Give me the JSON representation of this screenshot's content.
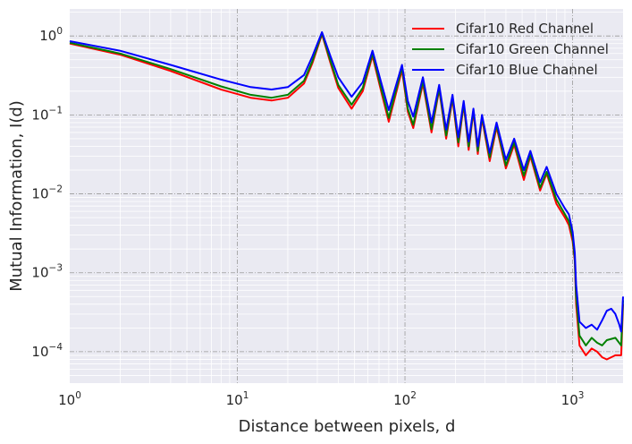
{
  "chart_data": {
    "type": "line",
    "xlabel": "Distance between pixels, d",
    "ylabel": "Mutual Information, I(d)",
    "xscale": "log",
    "yscale": "log",
    "xlim": [
      1,
      2000
    ],
    "ylim": [
      4e-05,
      2.2
    ],
    "grid": true,
    "legend_position": "top-right",
    "xticks": [
      {
        "value": 1,
        "base": "10",
        "exp": "0"
      },
      {
        "value": 10,
        "base": "10",
        "exp": "1"
      },
      {
        "value": 100,
        "base": "10",
        "exp": "2"
      },
      {
        "value": 1000,
        "base": "10",
        "exp": "3"
      }
    ],
    "yticks": [
      {
        "value": 0.0001,
        "base": "10",
        "exp": "−4"
      },
      {
        "value": 0.001,
        "base": "10",
        "exp": "−3"
      },
      {
        "value": 0.01,
        "base": "10",
        "exp": "−2"
      },
      {
        "value": 0.1,
        "base": "10",
        "exp": "−1"
      },
      {
        "value": 1,
        "base": "10",
        "exp": "0"
      }
    ],
    "series": [
      {
        "name": "Cifar10 Red Channel",
        "color": "#ff0000",
        "points": [
          [
            1,
            0.8
          ],
          [
            2,
            0.58
          ],
          [
            4,
            0.36
          ],
          [
            8,
            0.21
          ],
          [
            12,
            0.165
          ],
          [
            16,
            0.152
          ],
          [
            20,
            0.165
          ],
          [
            25,
            0.25
          ],
          [
            28,
            0.45
          ],
          [
            32,
            1.05
          ],
          [
            36,
            0.45
          ],
          [
            40,
            0.22
          ],
          [
            48,
            0.12
          ],
          [
            56,
            0.2
          ],
          [
            64,
            0.56
          ],
          [
            72,
            0.2
          ],
          [
            80,
            0.082
          ],
          [
            96,
            0.37
          ],
          [
            104,
            0.11
          ],
          [
            112,
            0.068
          ],
          [
            128,
            0.25
          ],
          [
            144,
            0.06
          ],
          [
            160,
            0.21
          ],
          [
            176,
            0.05
          ],
          [
            192,
            0.16
          ],
          [
            208,
            0.04
          ],
          [
            224,
            0.135
          ],
          [
            240,
            0.036
          ],
          [
            256,
            0.11
          ],
          [
            272,
            0.032
          ],
          [
            288,
            0.09
          ],
          [
            320,
            0.026
          ],
          [
            352,
            0.07
          ],
          [
            400,
            0.021
          ],
          [
            448,
            0.042
          ],
          [
            512,
            0.015
          ],
          [
            560,
            0.03
          ],
          [
            640,
            0.011
          ],
          [
            700,
            0.018
          ],
          [
            800,
            0.0075
          ],
          [
            900,
            0.005
          ],
          [
            950,
            0.004
          ],
          [
            1000,
            0.0025
          ],
          [
            1030,
            0.0014
          ],
          [
            1050,
            0.0004
          ],
          [
            1100,
            0.00012
          ],
          [
            1200,
            9e-05
          ],
          [
            1300,
            0.00011
          ],
          [
            1400,
            0.0001
          ],
          [
            1500,
            8.5e-05
          ],
          [
            1600,
            8e-05
          ],
          [
            1800,
            9e-05
          ],
          [
            1950,
            9e-05
          ],
          [
            2000,
            0.0004
          ]
        ]
      },
      {
        "name": "Cifar10 Green Channel",
        "color": "#008000",
        "points": [
          [
            1,
            0.82
          ],
          [
            2,
            0.6
          ],
          [
            4,
            0.38
          ],
          [
            8,
            0.23
          ],
          [
            12,
            0.18
          ],
          [
            16,
            0.165
          ],
          [
            20,
            0.18
          ],
          [
            25,
            0.27
          ],
          [
            28,
            0.48
          ],
          [
            32,
            1.08
          ],
          [
            36,
            0.48
          ],
          [
            40,
            0.24
          ],
          [
            48,
            0.135
          ],
          [
            56,
            0.22
          ],
          [
            64,
            0.6
          ],
          [
            72,
            0.22
          ],
          [
            80,
            0.092
          ],
          [
            96,
            0.4
          ],
          [
            104,
            0.12
          ],
          [
            112,
            0.075
          ],
          [
            128,
            0.27
          ],
          [
            144,
            0.066
          ],
          [
            160,
            0.22
          ],
          [
            176,
            0.055
          ],
          [
            192,
            0.17
          ],
          [
            208,
            0.045
          ],
          [
            224,
            0.14
          ],
          [
            240,
            0.04
          ],
          [
            256,
            0.115
          ],
          [
            272,
            0.035
          ],
          [
            288,
            0.095
          ],
          [
            320,
            0.029
          ],
          [
            352,
            0.075
          ],
          [
            400,
            0.023
          ],
          [
            448,
            0.045
          ],
          [
            512,
            0.017
          ],
          [
            560,
            0.032
          ],
          [
            640,
            0.012
          ],
          [
            700,
            0.019
          ],
          [
            800,
            0.0085
          ],
          [
            900,
            0.0055
          ],
          [
            950,
            0.0045
          ],
          [
            1000,
            0.0028
          ],
          [
            1030,
            0.0015
          ],
          [
            1050,
            0.0005
          ],
          [
            1100,
            0.00016
          ],
          [
            1200,
            0.00012
          ],
          [
            1300,
            0.00015
          ],
          [
            1400,
            0.00013
          ],
          [
            1500,
            0.00012
          ],
          [
            1600,
            0.00014
          ],
          [
            1800,
            0.00015
          ],
          [
            1950,
            0.00012
          ],
          [
            2000,
            0.00045
          ]
        ]
      },
      {
        "name": "Cifar10 Blue Channel",
        "color": "#0000ff",
        "points": [
          [
            1,
            0.86
          ],
          [
            2,
            0.65
          ],
          [
            4,
            0.43
          ],
          [
            8,
            0.28
          ],
          [
            12,
            0.225
          ],
          [
            16,
            0.21
          ],
          [
            20,
            0.225
          ],
          [
            25,
            0.32
          ],
          [
            28,
            0.55
          ],
          [
            32,
            1.12
          ],
          [
            36,
            0.55
          ],
          [
            40,
            0.3
          ],
          [
            48,
            0.17
          ],
          [
            56,
            0.26
          ],
          [
            64,
            0.65
          ],
          [
            72,
            0.26
          ],
          [
            80,
            0.115
          ],
          [
            96,
            0.43
          ],
          [
            104,
            0.15
          ],
          [
            112,
            0.095
          ],
          [
            128,
            0.3
          ],
          [
            144,
            0.08
          ],
          [
            160,
            0.24
          ],
          [
            176,
            0.065
          ],
          [
            192,
            0.18
          ],
          [
            208,
            0.052
          ],
          [
            224,
            0.15
          ],
          [
            240,
            0.046
          ],
          [
            256,
            0.12
          ],
          [
            272,
            0.04
          ],
          [
            288,
            0.1
          ],
          [
            320,
            0.033
          ],
          [
            352,
            0.08
          ],
          [
            400,
            0.027
          ],
          [
            448,
            0.05
          ],
          [
            512,
            0.02
          ],
          [
            560,
            0.035
          ],
          [
            640,
            0.014
          ],
          [
            700,
            0.022
          ],
          [
            800,
            0.01
          ],
          [
            900,
            0.0065
          ],
          [
            950,
            0.0055
          ],
          [
            1000,
            0.0033
          ],
          [
            1030,
            0.0018
          ],
          [
            1050,
            0.0007
          ],
          [
            1100,
            0.00024
          ],
          [
            1200,
            0.0002
          ],
          [
            1300,
            0.00022
          ],
          [
            1400,
            0.00019
          ],
          [
            1500,
            0.00025
          ],
          [
            1600,
            0.00033
          ],
          [
            1700,
            0.00035
          ],
          [
            1800,
            0.0003
          ],
          [
            1900,
            0.00022
          ],
          [
            1950,
            0.00018
          ],
          [
            2000,
            0.0005
          ]
        ]
      }
    ]
  }
}
